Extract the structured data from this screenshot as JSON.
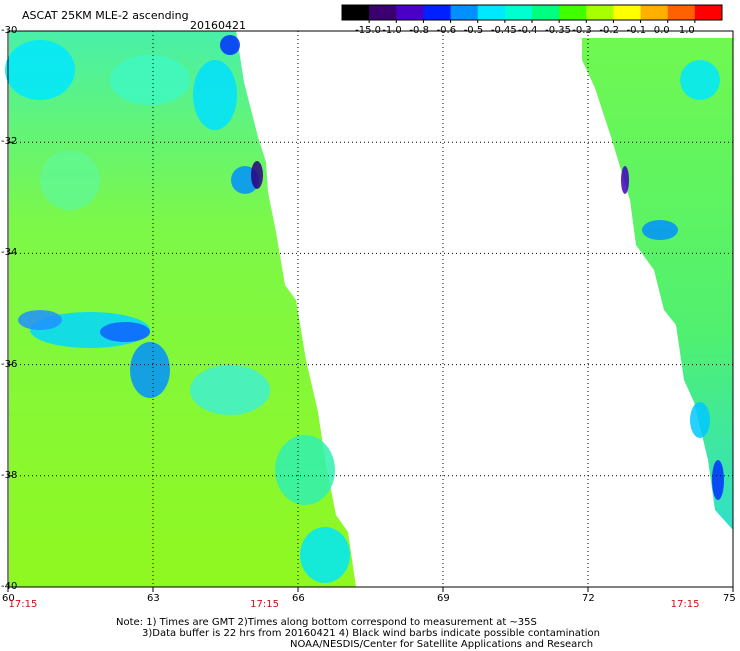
{
  "header": {
    "title": "ASCAT 25KM MLE-2 ascending",
    "date": "20160421"
  },
  "colorbar": {
    "labels": [
      "-15.0",
      "-1.0",
      "-0.8",
      "-0.6",
      "-0.5",
      "-0.45",
      "-0.4",
      "-0.35",
      "-0.3",
      "-0.2",
      "-0.1",
      "0.0",
      "1.0"
    ],
    "colors": [
      "#000000",
      "#3a0070",
      "#4b00c8",
      "#0020ff",
      "#0090ff",
      "#00e8ff",
      "#00ffd0",
      "#00ff80",
      "#40ff00",
      "#a8ff00",
      "#ffff00",
      "#ffb000",
      "#ff6000",
      "#ff0000"
    ]
  },
  "map": {
    "lon_ticks": [
      "60",
      "63",
      "66",
      "69",
      "72",
      "75"
    ],
    "lat_ticks": [
      "-30",
      "-32",
      "-34",
      "-36",
      "-38",
      "-40"
    ],
    "lon_range": [
      60,
      75
    ],
    "lat_range": [
      -30,
      -40
    ],
    "gridlines": true,
    "time_labels": [
      {
        "text": "17:15",
        "lon": 60.3
      },
      {
        "text": "17:15",
        "lon": 65.3
      },
      {
        "text": "17:15",
        "lon": 74.0
      }
    ]
  },
  "notes": {
    "line1": "Note: 1) Times are GMT 2)Times along bottom correspond to measurement at ~35S",
    "line2": "3)Data buffer is 22 hrs from 20160421 4) Black wind barbs indicate possible contamination",
    "line3": "NOAA/NESDIS/Center for Satellite Applications and Research"
  }
}
